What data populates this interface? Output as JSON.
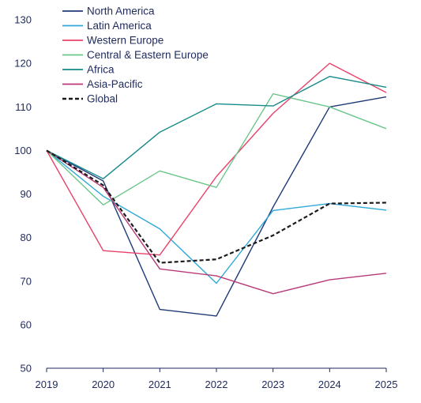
{
  "chart_data": {
    "type": "line",
    "title": "",
    "xlabel": "",
    "ylabel": "",
    "x": [
      "2019",
      "2020",
      "2021",
      "2022",
      "2023",
      "2024",
      "2025"
    ],
    "ylim": [
      50,
      130
    ],
    "yticks": [
      50,
      60,
      70,
      80,
      90,
      100,
      110,
      120,
      130
    ],
    "grid": false,
    "legend_position": "top-left",
    "series": [
      {
        "name": "North America",
        "color": "#1f3a78",
        "dashed": false,
        "values": [
          100,
          93,
          63.5,
          62,
          87,
          110,
          112.3
        ]
      },
      {
        "name": "Latin America",
        "color": "#2fa8d8",
        "dashed": false,
        "values": [
          100,
          89.5,
          82,
          69.5,
          86.2,
          87.8,
          86.3
        ]
      },
      {
        "name": "Western Europe",
        "color": "#e8426a",
        "dashed": false,
        "values": [
          100,
          77,
          76,
          94,
          108.5,
          120,
          113.3
        ]
      },
      {
        "name": "Central & Eastern Europe",
        "color": "#6cc68a",
        "dashed": false,
        "values": [
          100,
          87.5,
          95.3,
          91.5,
          113,
          110,
          105
        ]
      },
      {
        "name": "Africa",
        "color": "#178a8a",
        "dashed": false,
        "values": [
          100,
          93.5,
          104.2,
          110.7,
          110.2,
          117,
          114.5
        ]
      },
      {
        "name": "Asia-Pacific",
        "color": "#b83a78",
        "dashed": false,
        "values": [
          100,
          91.5,
          72.8,
          71.2,
          67.1,
          70.3,
          71.8
        ]
      },
      {
        "name": "Global",
        "color": "#1b1b1b",
        "dashed": true,
        "values": [
          100,
          92,
          74.2,
          75,
          80.5,
          87.8,
          88
        ]
      }
    ]
  }
}
